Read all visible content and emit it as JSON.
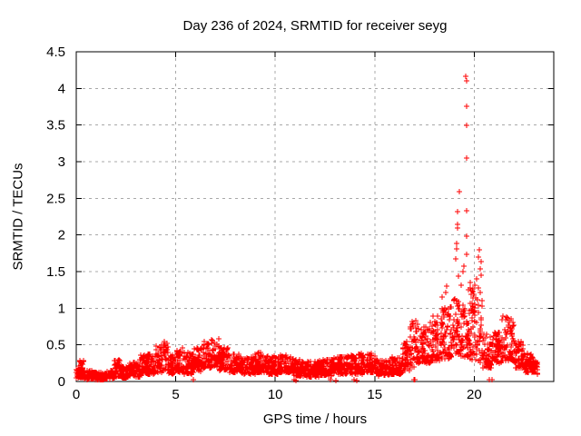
{
  "chart_data": {
    "type": "scatter",
    "title": "Day 236 of 2024, SRMTID for receiver seyg",
    "xlabel": "GPS time / hours",
    "ylabel": "SRMTID / TECUs",
    "xlim": [
      0,
      24
    ],
    "ylim": [
      0,
      4.5
    ],
    "xticks": [
      0,
      5,
      10,
      15,
      20
    ],
    "xtick_labels": [
      "0",
      "5",
      "10",
      "15",
      "20"
    ],
    "yticks": [
      0,
      0.5,
      1,
      1.5,
      2,
      2.5,
      3,
      3.5,
      4,
      4.5
    ],
    "ytick_labels": [
      "0",
      "0.5",
      "1",
      "1.5",
      "2",
      "2.5",
      "3",
      "3.5",
      "4",
      "4.5"
    ],
    "grid": true,
    "legend": null,
    "background": "#ffffff",
    "plot_border_color": "#000000",
    "grid_color": "#a8a8a8",
    "marker": {
      "shape": "plus",
      "color": "#ff0000",
      "size": 7
    },
    "sampling_per_hour": 120,
    "band_envelope": [
      [
        0.0,
        0.15,
        0.05,
        0.24
      ],
      [
        0.15,
        0.4,
        0.05,
        0.3
      ],
      [
        0.4,
        0.9,
        0.03,
        0.16
      ],
      [
        0.9,
        1.4,
        0.02,
        0.13
      ],
      [
        1.4,
        1.9,
        0.03,
        0.15
      ],
      [
        1.9,
        2.2,
        0.05,
        0.3
      ],
      [
        2.2,
        2.7,
        0.05,
        0.22
      ],
      [
        2.7,
        3.2,
        0.06,
        0.26
      ],
      [
        3.2,
        3.6,
        0.08,
        0.36
      ],
      [
        3.6,
        4.0,
        0.1,
        0.44
      ],
      [
        4.0,
        4.3,
        0.12,
        0.5
      ],
      [
        4.3,
        4.6,
        0.14,
        0.56
      ],
      [
        4.6,
        5.0,
        0.1,
        0.38
      ],
      [
        5.0,
        5.4,
        0.12,
        0.46
      ],
      [
        5.4,
        5.9,
        0.1,
        0.4
      ],
      [
        5.9,
        6.3,
        0.14,
        0.46
      ],
      [
        6.3,
        6.8,
        0.18,
        0.54
      ],
      [
        6.8,
        7.2,
        0.2,
        0.58
      ],
      [
        7.2,
        7.7,
        0.15,
        0.46
      ],
      [
        7.7,
        8.2,
        0.12,
        0.38
      ],
      [
        8.2,
        9.0,
        0.1,
        0.33
      ],
      [
        9.0,
        9.6,
        0.12,
        0.4
      ],
      [
        9.6,
        10.2,
        0.1,
        0.35
      ],
      [
        10.2,
        10.9,
        0.12,
        0.37
      ],
      [
        10.9,
        11.4,
        0.07,
        0.3
      ],
      [
        11.4,
        12.2,
        0.06,
        0.28
      ],
      [
        12.2,
        12.9,
        0.08,
        0.3
      ],
      [
        12.9,
        13.6,
        0.1,
        0.34
      ],
      [
        13.6,
        14.4,
        0.1,
        0.38
      ],
      [
        14.4,
        15.1,
        0.12,
        0.4
      ],
      [
        15.1,
        15.8,
        0.08,
        0.3
      ],
      [
        15.8,
        16.4,
        0.1,
        0.34
      ],
      [
        16.4,
        16.8,
        0.15,
        0.55
      ],
      [
        16.8,
        17.25,
        0.2,
        0.85
      ],
      [
        17.25,
        17.8,
        0.25,
        0.75
      ],
      [
        17.8,
        18.3,
        0.28,
        0.9
      ],
      [
        18.3,
        18.9,
        0.3,
        1.05
      ],
      [
        18.9,
        19.45,
        0.35,
        1.15
      ],
      [
        19.45,
        19.8,
        0.3,
        1.0
      ],
      [
        19.8,
        20.4,
        0.25,
        1.28
      ],
      [
        20.4,
        20.9,
        0.18,
        0.65
      ],
      [
        20.9,
        21.4,
        0.25,
        0.68
      ],
      [
        21.4,
        22.0,
        0.28,
        0.92
      ],
      [
        22.0,
        22.5,
        0.18,
        0.55
      ],
      [
        22.5,
        23.0,
        0.12,
        0.4
      ],
      [
        23.0,
        23.2,
        0.1,
        0.28
      ]
    ],
    "outliers": [
      [
        19.58,
        4.16
      ],
      [
        19.62,
        4.1
      ],
      [
        19.6,
        3.76
      ],
      [
        19.64,
        3.5
      ],
      [
        19.64,
        3.05
      ],
      [
        19.25,
        2.59
      ],
      [
        19.15,
        2.32
      ],
      [
        19.6,
        2.33
      ],
      [
        19.17,
        2.14
      ],
      [
        19.16,
        2.1
      ],
      [
        19.62,
        1.98
      ],
      [
        19.1,
        1.89
      ],
      [
        19.11,
        1.81
      ],
      [
        19.6,
        1.74
      ],
      [
        19.08,
        1.67
      ],
      [
        19.5,
        1.57
      ],
      [
        19.42,
        1.5
      ],
      [
        19.2,
        1.44
      ],
      [
        19.34,
        1.31
      ],
      [
        18.62,
        1.3
      ],
      [
        18.58,
        1.22
      ],
      [
        20.28,
        1.8
      ],
      [
        20.22,
        1.7
      ],
      [
        20.33,
        1.64
      ],
      [
        20.3,
        1.54
      ],
      [
        20.1,
        1.4
      ],
      [
        20.05,
        1.32
      ],
      [
        19.8,
        1.35
      ],
      [
        18.4,
        1.15
      ],
      [
        19.7,
        1.25
      ],
      [
        20.36,
        1.45
      ],
      [
        20.4,
        1.1
      ]
    ],
    "near_zero_points": [
      [
        5.88,
        0.02
      ],
      [
        10.95,
        0.02
      ],
      [
        11.06,
        0.01
      ],
      [
        12.79,
        0.02
      ],
      [
        13.04,
        0.01
      ],
      [
        13.98,
        0.02
      ],
      [
        14.08,
        0.01
      ],
      [
        16.99,
        0.02
      ],
      [
        17.02,
        0.02
      ],
      [
        20.77,
        0.02
      ],
      [
        20.92,
        0.02
      ]
    ]
  }
}
